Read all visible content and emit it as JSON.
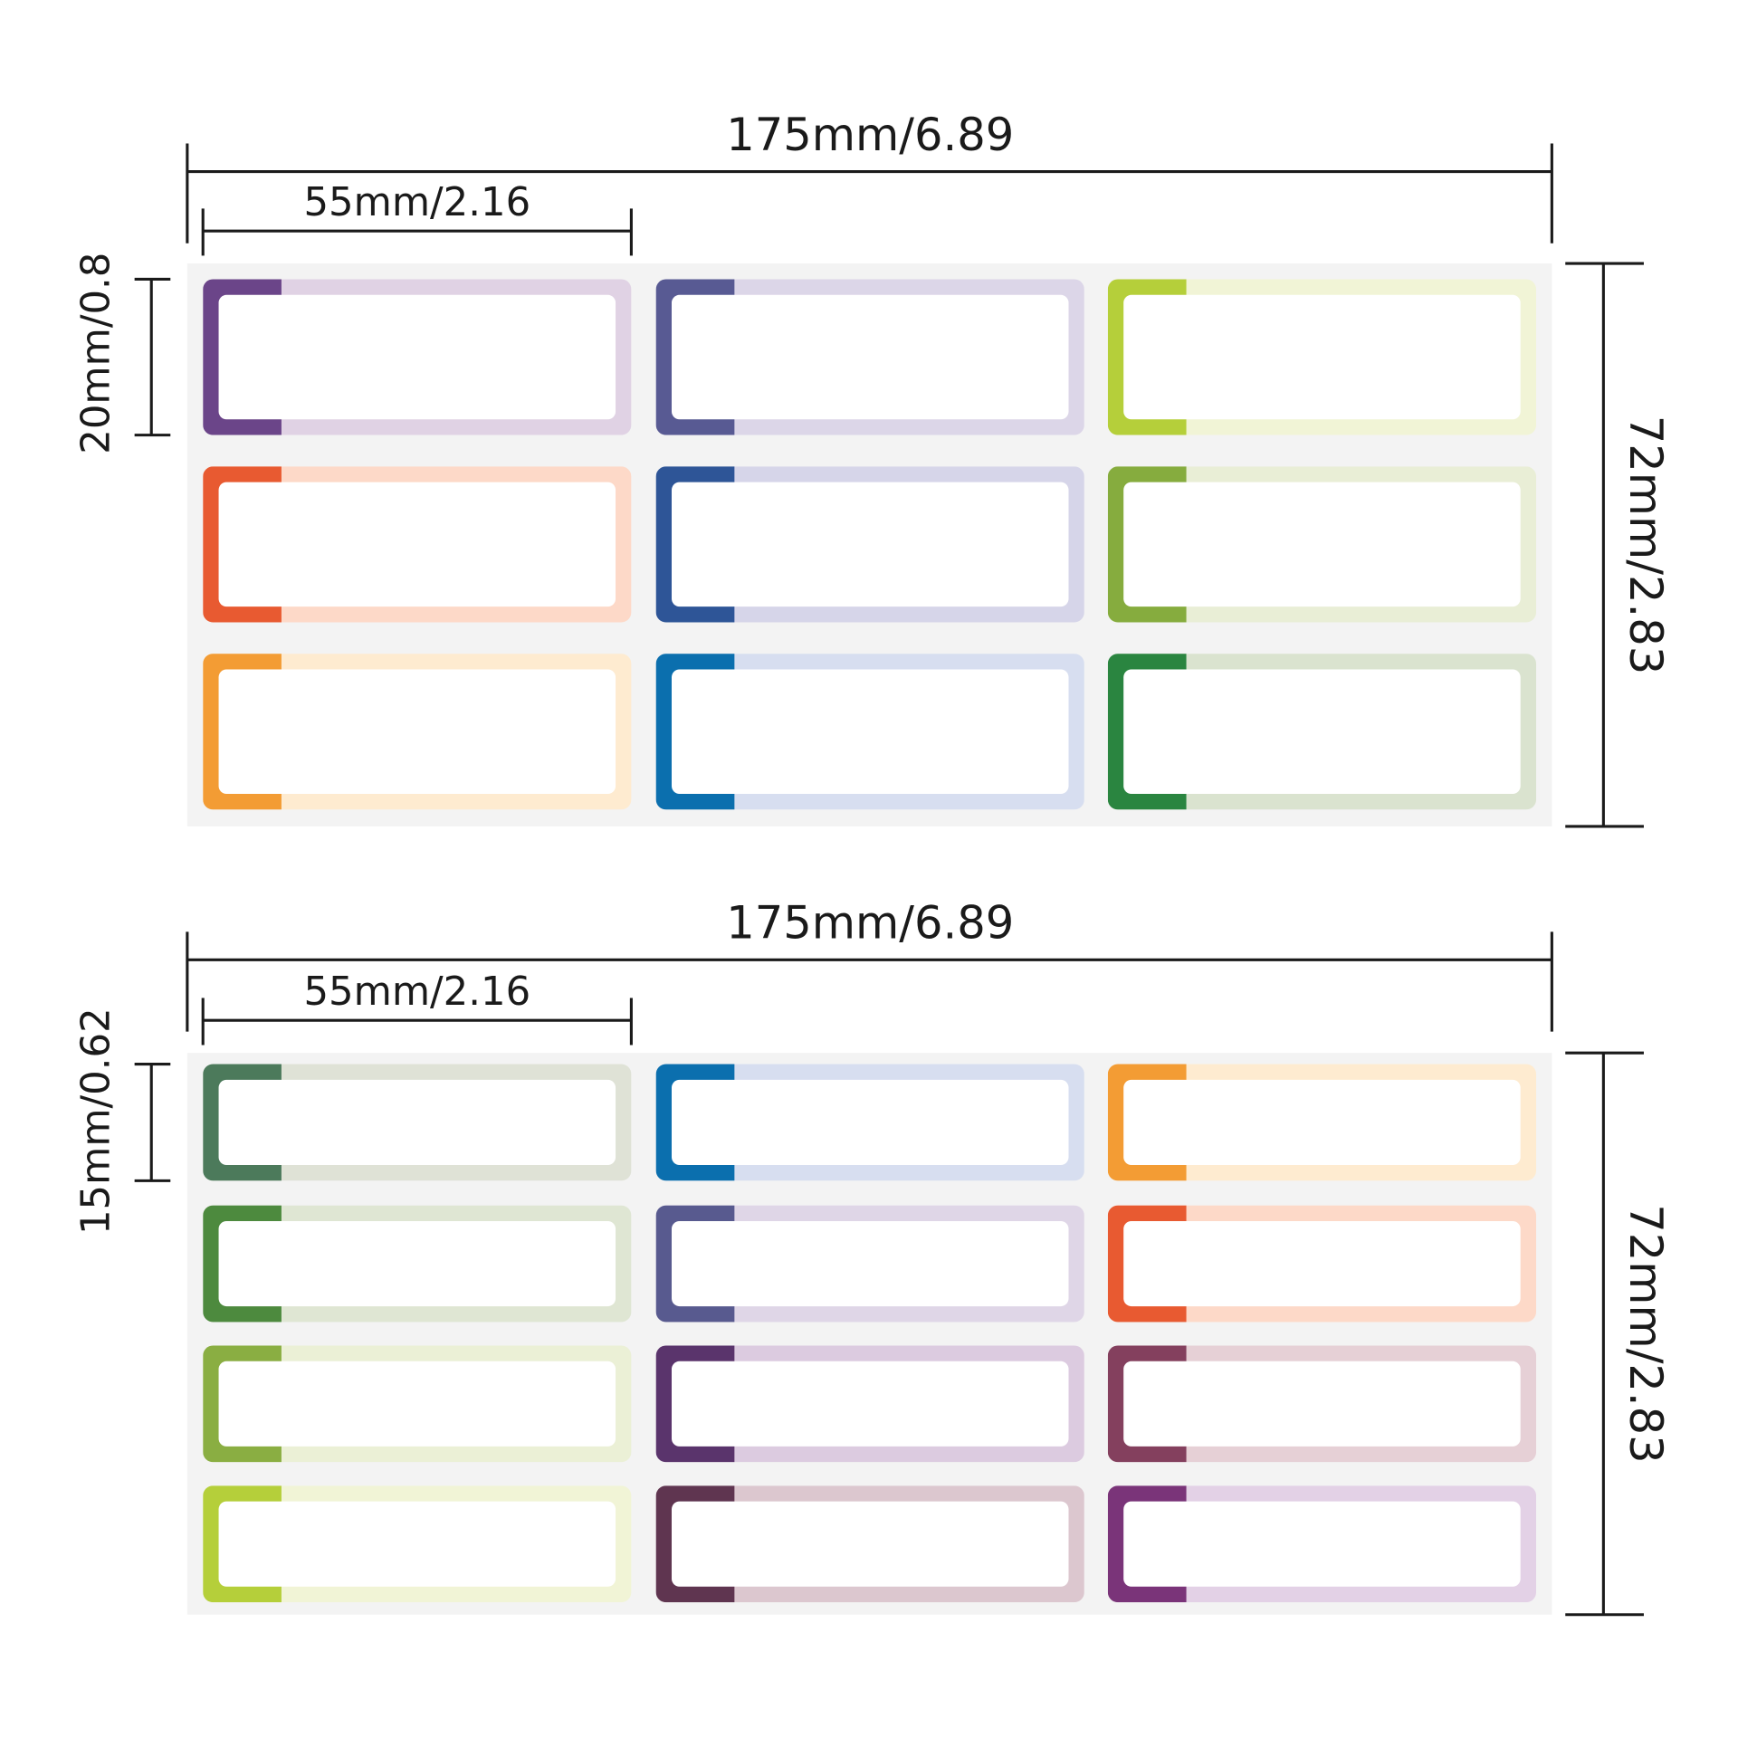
{
  "sheets": [
    {
      "width_label": "175mm/6.89",
      "label_width_label": "55mm/2.16",
      "label_height_label": "20mm/0.8",
      "height_label": "72mm/2.83",
      "labels": [
        [
          {
            "accent": "#6b4589",
            "tint": "#e0d2e4"
          },
          {
            "accent": "#585a93",
            "tint": "#dcd6e8"
          },
          {
            "accent": "#b5cf3a",
            "tint": "#f1f4d6"
          }
        ],
        [
          {
            "accent": "#e85a31",
            "tint": "#fdd9c8"
          },
          {
            "accent": "#2e5597",
            "tint": "#d6d5e9"
          },
          {
            "accent": "#86ac3e",
            "tint": "#e9eed6"
          }
        ],
        [
          {
            "accent": "#f39c34",
            "tint": "#feebd0"
          },
          {
            "accent": "#0b6fae",
            "tint": "#d7def0"
          },
          {
            "accent": "#2a8540",
            "tint": "#dae3cf"
          }
        ]
      ]
    },
    {
      "width_label": "175mm/6.89",
      "label_width_label": "55mm/2.16",
      "label_height_label": "15mm/0.62",
      "height_label": "72mm/2.83",
      "labels": [
        [
          {
            "accent": "#4c7a5b",
            "tint": "#dfe2d6"
          },
          {
            "accent": "#0b6fae",
            "tint": "#d7def0"
          },
          {
            "accent": "#f39c34",
            "tint": "#feebd0"
          }
        ],
        [
          {
            "accent": "#4d8a3e",
            "tint": "#dfe6d3"
          },
          {
            "accent": "#585a8f",
            "tint": "#dfd6e7"
          },
          {
            "accent": "#e85a31",
            "tint": "#fdd9c8"
          }
        ],
        [
          {
            "accent": "#8aae42",
            "tint": "#ebf0d6"
          },
          {
            "accent": "#5a346c",
            "tint": "#dccbe0"
          },
          {
            "accent": "#84405e",
            "tint": "#e6d0d6"
          }
        ],
        [
          {
            "accent": "#b5cf3a",
            "tint": "#f1f4d6"
          },
          {
            "accent": "#5f3550",
            "tint": "#dcc7cf"
          },
          {
            "accent": "#7a3479",
            "tint": "#e3d1e6"
          }
        ]
      ]
    }
  ]
}
